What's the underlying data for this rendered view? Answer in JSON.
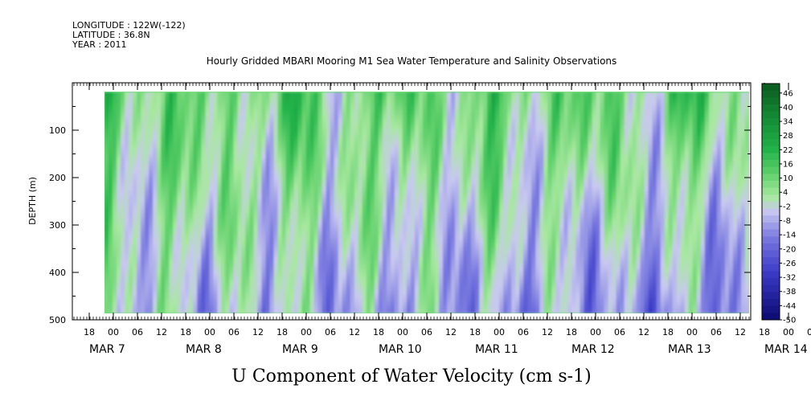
{
  "header": {
    "longitude": "LONGITUDE : 122W(-122)",
    "latitude": "LATITUDE : 36.8N",
    "year": "YEAR : 2011"
  },
  "chart_data": {
    "type": "heatmap",
    "title": "Hourly Gridded MBARI Mooring M1 Sea Water Temperature and Salinity Observations",
    "xlabel": "U Component of Water Velocity (cm s-1)",
    "ylabel": "DEPTH (m)",
    "ylim": [
      500,
      0
    ],
    "y_ticks": [
      100,
      200,
      300,
      400,
      500
    ],
    "x_hour_ticks": [
      "18",
      "00",
      "06",
      "12",
      "18",
      "00",
      "06",
      "12",
      "18",
      "00",
      "06",
      "12",
      "18",
      "00",
      "06",
      "12",
      "18",
      "00",
      "06",
      "12",
      "18",
      "00",
      "06",
      "12",
      "18",
      "00",
      "06",
      "12",
      "18",
      "00",
      "06",
      "12"
    ],
    "x_day_labels": [
      "MAR  7",
      "MAR  8",
      "MAR  9",
      "MAR 10",
      "MAR 11",
      "MAR 12",
      "MAR 13",
      "MAR 14"
    ],
    "colorbar": {
      "levels": [
        "46",
        "40",
        "34",
        "28",
        "22",
        "16",
        "10",
        "4",
        "-2",
        "-8",
        "-14",
        "-20",
        "-26",
        "-32",
        "-38",
        "-44",
        "-50"
      ],
      "range": [
        -50,
        50
      ],
      "colors": {
        "strong_positive": "#0a5a1e",
        "positive": "#22b24a",
        "weak_positive": "#a8e8a0",
        "weak_negative": "#c8c8f0",
        "negative": "#7a7ae0",
        "strong_negative": "#0a0a70"
      }
    },
    "data_depth_range": [
      20,
      485
    ],
    "summary": "Predominantly positive (green) velocities near surface, with patches of negative (lavender/blue) velocities at depth, increasing toward later dates."
  }
}
